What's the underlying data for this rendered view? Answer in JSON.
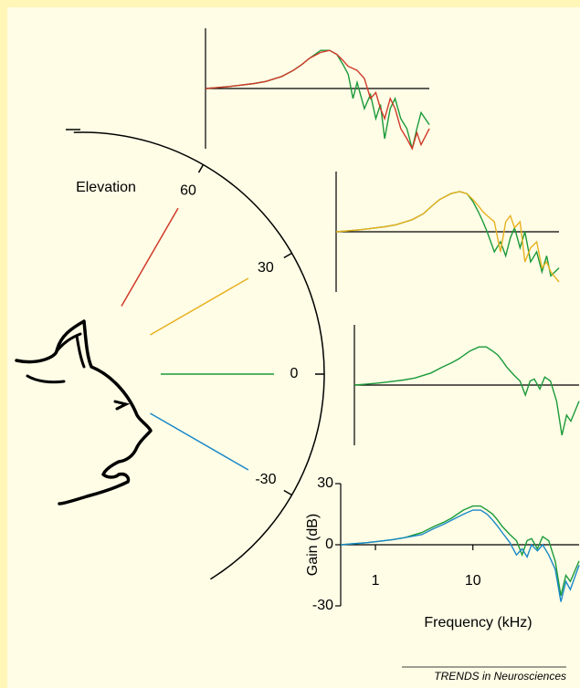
{
  "chart_data": [
    {
      "type": "line",
      "x": [
        0.44,
        0.6,
        0.8,
        1,
        1.5,
        2,
        3,
        4,
        5,
        6,
        8,
        10,
        12,
        14,
        16,
        18,
        20,
        24,
        28,
        32,
        36,
        40,
        46,
        52,
        60,
        70,
        80,
        90,
        100,
        123
      ],
      "xlim": [
        0.44,
        123
      ],
      "log_x": true,
      "ylim": [
        -30,
        30
      ],
      "series": [
        {
          "color": "#1a9a3a",
          "values": [
            0,
            0.5,
            1,
            1.5,
            2.5,
            3.5,
            6,
            9,
            12,
            15,
            19,
            19,
            17,
            12,
            7,
            -5,
            3,
            -10,
            -3,
            -15,
            -8,
            -25,
            -10,
            -5,
            -15,
            -20,
            -30,
            -20,
            -12,
            -18
          ]
        },
        {
          "color": "#d03a2a",
          "values": [
            0,
            0.5,
            1,
            1.5,
            2.5,
            3.5,
            6,
            9,
            12,
            15,
            18,
            19,
            17,
            14,
            11,
            10,
            9,
            5,
            -5,
            -2,
            -10,
            -15,
            -5,
            -10,
            -20,
            -25,
            -30,
            -22,
            -28,
            -20
          ]
        }
      ]
    },
    {
      "type": "line",
      "x": [
        0.44,
        0.6,
        0.8,
        1,
        1.5,
        2,
        3,
        4,
        5,
        6,
        8,
        10,
        12,
        14,
        16,
        18,
        20,
        24,
        28,
        32,
        36,
        40,
        46,
        52,
        60,
        70,
        80,
        90,
        100,
        123
      ],
      "xlim": [
        0.44,
        123
      ],
      "log_x": true,
      "ylim": [
        -30,
        30
      ],
      "series": [
        {
          "color": "#1a9a3a",
          "values": [
            0,
            0.5,
            1,
            1.5,
            2.5,
            3.5,
            6,
            9,
            13,
            16,
            19,
            20,
            19,
            15,
            10,
            5,
            0,
            -10,
            -5,
            -12,
            -3,
            2,
            -8,
            0,
            -15,
            -10,
            -20,
            -12,
            -22,
            -18
          ]
        },
        {
          "color": "#e8b020",
          "values": [
            0,
            0.5,
            1,
            1.5,
            2.5,
            3.5,
            6,
            9,
            13,
            16,
            19,
            20,
            19,
            16,
            13,
            10,
            8,
            5,
            -10,
            5,
            8,
            2,
            5,
            -15,
            -8,
            -5,
            -18,
            -15,
            -20,
            -25
          ]
        }
      ]
    },
    {
      "type": "line",
      "x": [
        0.44,
        0.6,
        0.8,
        1,
        1.5,
        2,
        3,
        4,
        5,
        6,
        8,
        10,
        12,
        14,
        16,
        18,
        20,
        24,
        28,
        32,
        36,
        40,
        46,
        52,
        60,
        70,
        80,
        90,
        100,
        123
      ],
      "xlim": [
        0.44,
        123
      ],
      "log_x": true,
      "ylim": [
        -30,
        30
      ],
      "series": [
        {
          "color": "#1a9a3a",
          "values": [
            0,
            0.5,
            1,
            1.5,
            2.5,
            3.5,
            6,
            9,
            11,
            13,
            17,
            19,
            19,
            17,
            15,
            12,
            9,
            5,
            2,
            -5,
            2,
            3,
            -2,
            4,
            2,
            -8,
            -25,
            -15,
            -18,
            -8
          ]
        }
      ]
    },
    {
      "type": "line",
      "x": [
        0.44,
        0.6,
        0.8,
        1,
        1.5,
        2,
        3,
        4,
        5,
        6,
        8,
        10,
        12,
        14,
        16,
        18,
        20,
        24,
        28,
        32,
        36,
        40,
        46,
        52,
        60,
        70,
        80,
        90,
        100,
        123
      ],
      "xlim": [
        0.44,
        123
      ],
      "log_x": true,
      "ylim": [
        -30,
        30
      ],
      "xticks": [
        1,
        10
      ],
      "yticks": [
        30,
        0,
        -30
      ],
      "x_label": "Frequency (kHz)",
      "y_label": "Gain (dB)",
      "series": [
        {
          "color": "#1a9a3a",
          "values": [
            0,
            0.5,
            1,
            1.5,
            2.5,
            3.5,
            6,
            9,
            11,
            13,
            17,
            19,
            19,
            17,
            15,
            12,
            9,
            5,
            2,
            -5,
            2,
            3,
            -2,
            4,
            2,
            -8,
            -25,
            -15,
            -18,
            -8
          ]
        },
        {
          "color": "#1a88c8",
          "values": [
            0,
            0.5,
            1,
            1.5,
            2.5,
            3.5,
            5,
            8,
            10,
            12,
            15,
            17,
            17,
            15,
            12,
            9,
            6,
            1,
            -5,
            -2,
            -6,
            0,
            -3,
            0,
            -5,
            -12,
            -28,
            -18,
            -22,
            -10
          ]
        }
      ]
    }
  ],
  "diagram": {
    "title": "Elevation",
    "elevations": [
      60,
      30,
      0,
      -30
    ],
    "colors": [
      "#d03a2a",
      "#e8b020",
      "#1a9a3a",
      "#1a88c8"
    ]
  },
  "footer": "TRENDS in Neurosciences"
}
